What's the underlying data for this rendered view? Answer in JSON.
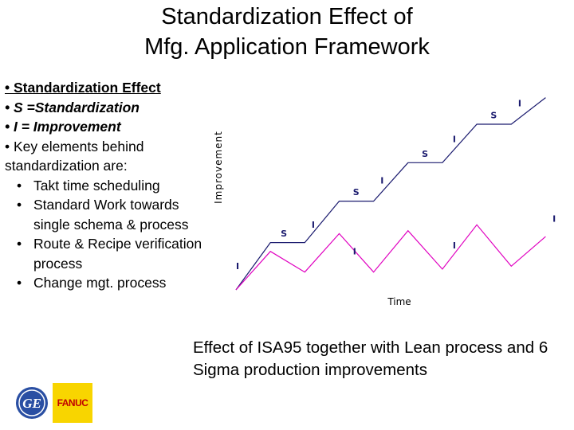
{
  "slide": {
    "title_line1": "Standardization Effect of",
    "title_line2": "Mfg. Application Framework",
    "bullets": {
      "b1": "• Standardization Effect",
      "b2": "• S =Standardization",
      "b3": "• I = Improvement",
      "b4": "• Key elements behind standardization are:",
      "sub": [
        "Takt time scheduling",
        "Standard Work towards single schema & process",
        "Route & Recipe verification process",
        "Change mgt. process"
      ],
      "sub_marker": "•"
    },
    "caption": "Effect of ISA95 together with Lean process and 6 Sigma production improvements",
    "logos": {
      "fanuc_text": "FANUC",
      "ge_text": "GE"
    }
  },
  "chart_data": {
    "type": "line",
    "xlabel": "Time",
    "ylabel": "Improvement",
    "series": [
      {
        "color": "#1a1a6e",
        "x": [
          0,
          1,
          2,
          3,
          4,
          5,
          6,
          7,
          8,
          9
        ],
        "y": [
          0,
          1.6,
          1.6,
          3.0,
          3.0,
          4.3,
          4.3,
          5.6,
          5.6,
          6.5
        ]
      },
      {
        "color": "#e000c0",
        "x": [
          0,
          1,
          2,
          3,
          4,
          5,
          6,
          7,
          8,
          9
        ],
        "y": [
          0,
          1.3,
          0.6,
          1.9,
          0.6,
          2.0,
          0.7,
          2.2,
          0.8,
          1.8
        ]
      }
    ],
    "annotations": [
      {
        "text": "I",
        "x": 0.0,
        "y": 0.7,
        "color": "#1a1a6e"
      },
      {
        "text": "S",
        "x": 1.3,
        "y": 1.8,
        "color": "#1a1a6e"
      },
      {
        "text": "I",
        "x": 2.2,
        "y": 2.1,
        "color": "#1a1a6e"
      },
      {
        "text": "I",
        "x": 3.4,
        "y": 1.2,
        "color": "#1a1a6e"
      },
      {
        "text": "S",
        "x": 3.4,
        "y": 3.2,
        "color": "#1a1a6e"
      },
      {
        "text": "I",
        "x": 4.2,
        "y": 3.6,
        "color": "#1a1a6e"
      },
      {
        "text": "S",
        "x": 5.4,
        "y": 4.5,
        "color": "#1a1a6e"
      },
      {
        "text": "I",
        "x": 6.3,
        "y": 5.0,
        "color": "#1a1a6e"
      },
      {
        "text": "I",
        "x": 6.3,
        "y": 1.4,
        "color": "#1a1a6e"
      },
      {
        "text": "S",
        "x": 7.4,
        "y": 5.8,
        "color": "#1a1a6e"
      },
      {
        "text": "I",
        "x": 8.2,
        "y": 6.2,
        "color": "#1a1a6e"
      },
      {
        "text": "I",
        "x": 9.2,
        "y": 2.3,
        "color": "#1a1a6e"
      }
    ],
    "xlim": [
      0,
      9.5
    ],
    "ylim": [
      0,
      7
    ],
    "grid": false,
    "legend": "none"
  }
}
